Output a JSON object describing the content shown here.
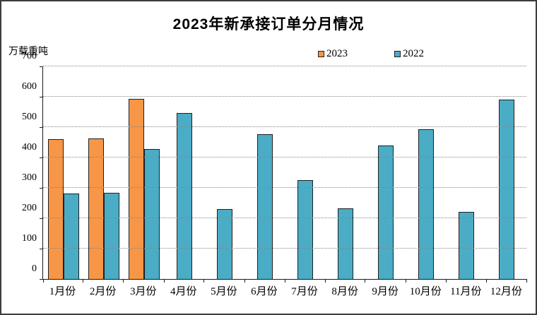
{
  "title": "2023年新承接订单分月情况",
  "y_axis_unit": "万载重吨",
  "colors": {
    "series_2023": "#F79646",
    "series_2022": "#4BACC6",
    "bar_border": "#202020",
    "gridline": "#868686",
    "axis": "#1a1a1a",
    "frame_border": "#3c3c3c",
    "background": "#ffffff"
  },
  "chart_data": {
    "type": "bar",
    "title": "2023年新承接订单分月情况",
    "ylabel": "万载重吨",
    "xlabel": "",
    "categories": [
      "1月份",
      "2月份",
      "3月份",
      "4月份",
      "5月份",
      "6月份",
      "7月份",
      "8月份",
      "9月份",
      "10月份",
      "11月份",
      "12月份"
    ],
    "series": [
      {
        "name": "2023",
        "color": "#F79646",
        "values": [
          460,
          462,
          593,
          null,
          null,
          null,
          null,
          null,
          null,
          null,
          null,
          null
        ]
      },
      {
        "name": "2022",
        "color": "#4BACC6",
        "values": [
          281,
          283,
          428,
          546,
          230,
          477,
          326,
          232,
          440,
          492,
          220,
          591
        ]
      }
    ],
    "ylim": [
      0,
      700
    ],
    "y_ticks": [
      0,
      100,
      200,
      300,
      400,
      500,
      600,
      700
    ],
    "grid": "horizontal-dotted",
    "legend_position": "top-center"
  }
}
